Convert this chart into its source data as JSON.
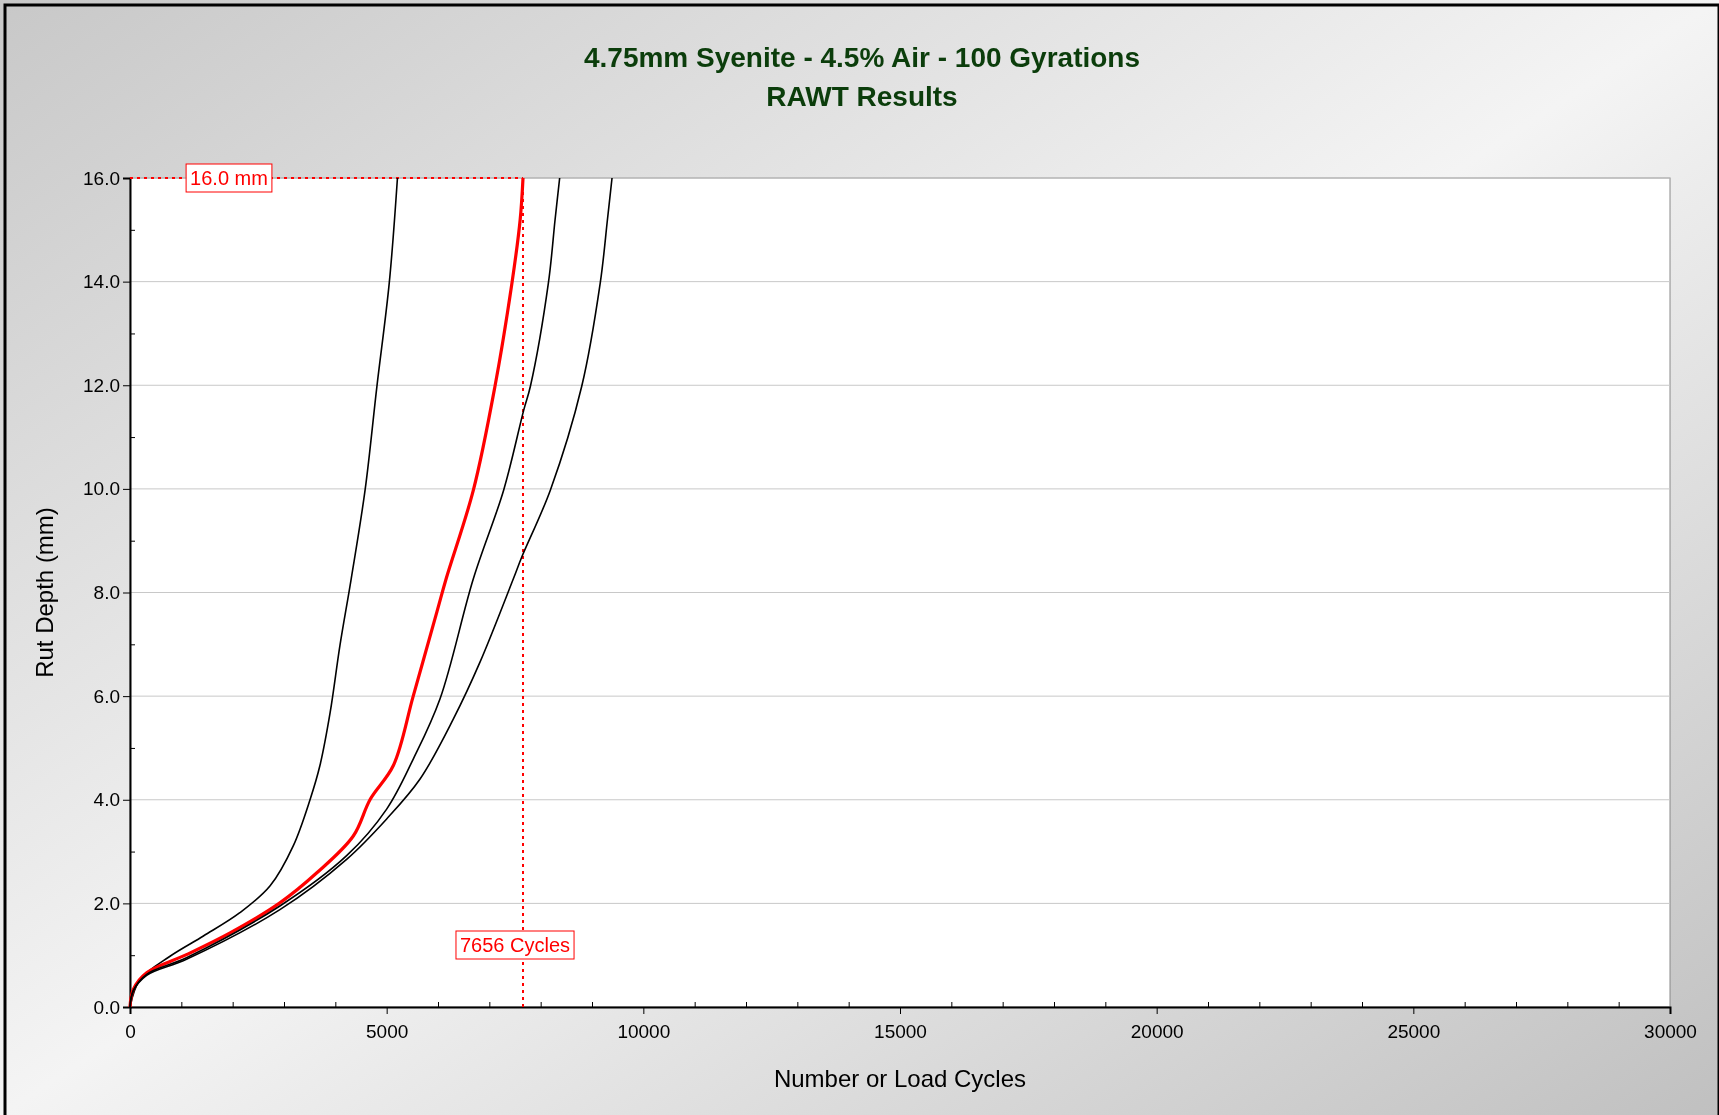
{
  "chart_data": {
    "type": "line",
    "title": "4.75mm Syenite - 4.5% Air - 100 Gyrations",
    "subtitle": "RAWT Results",
    "xlabel": "Number or Load Cycles",
    "ylabel": "Rut Depth (mm)",
    "xlim": [
      0,
      30000
    ],
    "ylim": [
      0,
      16
    ],
    "xticks": [
      0,
      {
        "value": 1000,
        "label": null
      },
      {
        "value": 2000,
        "label": null
      },
      {
        "value": 3000,
        "label": null
      },
      {
        "value": 4000,
        "label": null
      },
      5000,
      {
        "value": 6000,
        "label": null
      },
      {
        "value": 7000,
        "label": null
      },
      {
        "value": 8000,
        "label": null
      },
      {
        "value": 9000,
        "label": null
      },
      10000,
      {
        "value": 11000,
        "label": null
      },
      {
        "value": 12000,
        "label": null
      },
      {
        "value": 13000,
        "label": null
      },
      {
        "value": 14000,
        "label": null
      },
      15000,
      {
        "value": 16000,
        "label": null
      },
      {
        "value": 17000,
        "label": null
      },
      {
        "value": 18000,
        "label": null
      },
      {
        "value": 19000,
        "label": null
      },
      20000,
      {
        "value": 21000,
        "label": null
      },
      {
        "value": 22000,
        "label": null
      },
      {
        "value": 23000,
        "label": null
      },
      {
        "value": 24000,
        "label": null
      },
      25000,
      {
        "value": 26000,
        "label": null
      },
      {
        "value": 27000,
        "label": null
      },
      {
        "value": 28000,
        "label": null
      },
      {
        "value": 29000,
        "label": null
      },
      30000
    ],
    "yticks": [
      {
        "value": 0,
        "label": "0.0"
      },
      {
        "value": 1,
        "label": null
      },
      {
        "value": 2,
        "label": "2.0"
      },
      {
        "value": 3,
        "label": null
      },
      {
        "value": 4,
        "label": "4.0"
      },
      {
        "value": 5,
        "label": null
      },
      {
        "value": 6,
        "label": "6.0"
      },
      {
        "value": 7,
        "label": null
      },
      {
        "value": 8,
        "label": "8.0"
      },
      {
        "value": 9,
        "label": null
      },
      {
        "value": 10,
        "label": "10.0"
      },
      {
        "value": 11,
        "label": null
      },
      {
        "value": 12,
        "label": "12.0"
      },
      {
        "value": 13,
        "label": null
      },
      {
        "value": 14,
        "label": "14.0"
      },
      {
        "value": 15,
        "label": null
      },
      {
        "value": 16,
        "label": "16.0"
      }
    ],
    "grid": "y",
    "marker": "none",
    "line_style": "solid",
    "series": [
      {
        "color": "#000000",
        "x": [
          0,
          195,
          780,
          1430,
          2140,
          2730,
          3180,
          3510,
          3700,
          3900,
          4090,
          4310,
          4580,
          4810,
          5050,
          5210
        ],
        "values": [
          0,
          0.53,
          0.98,
          1.37,
          1.82,
          2.34,
          3.11,
          4.01,
          4.66,
          5.69,
          6.98,
          8.27,
          9.98,
          11.98,
          13.97,
          16
        ]
      },
      {
        "color": "#ff0000",
        "x": [
          0,
          65,
          325,
          1100,
          1950,
          2920,
          3640,
          4350,
          4680,
          5130,
          5520,
          5980,
          6160,
          6690,
          7110,
          7440,
          7600,
          7656
        ],
        "values": [
          0,
          0.34,
          0.66,
          1.01,
          1.43,
          2.01,
          2.59,
          3.3,
          4.01,
          4.66,
          6.01,
          7.63,
          8.27,
          9.98,
          11.98,
          13.97,
          15.19,
          16
        ]
      },
      {
        "color": "#000000",
        "x": [
          0,
          65,
          325,
          1100,
          2920,
          4220,
          5000,
          5520,
          6040,
          6690,
          7280,
          7670,
          7800,
          8150,
          8280,
          8370
        ],
        "values": [
          0,
          0.32,
          0.63,
          0.95,
          1.95,
          2.92,
          3.82,
          4.79,
          5.95,
          8.27,
          9.98,
          11.52,
          11.98,
          13.97,
          15.19,
          16
        ]
      },
      {
        "color": "#000000",
        "x": [
          0,
          65,
          325,
          1100,
          2920,
          4220,
          5000,
          5650,
          6300,
          6820,
          7470,
          7630,
          8190,
          8800,
          9160,
          9300,
          9390
        ],
        "values": [
          0,
          0.31,
          0.61,
          0.92,
          1.88,
          2.85,
          3.63,
          4.4,
          5.56,
          6.66,
          8.27,
          8.68,
          9.98,
          11.98,
          13.97,
          15.19,
          16
        ]
      }
    ],
    "ref_lines": [
      {
        "axis": "y",
        "value": 16,
        "label": "16.0 mm",
        "color": "#ff0000",
        "line_style": "dotted"
      },
      {
        "axis": "x",
        "value": 7656,
        "label": "7656 Cycles",
        "color": "#ff0000",
        "line_style": "dotted"
      }
    ]
  }
}
